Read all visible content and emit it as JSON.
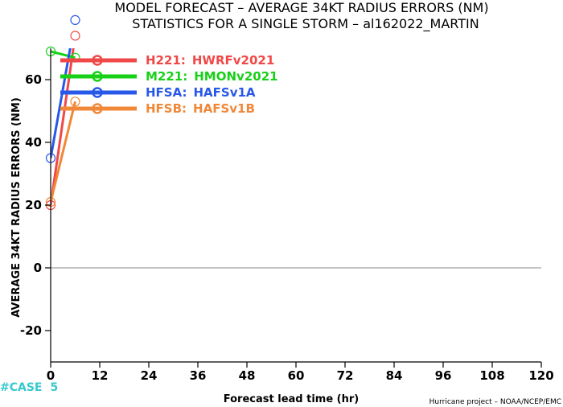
{
  "page": {
    "title_line1": "MODEL FORECAST – AVERAGE 34KT RADIUS ERRORS (NM)",
    "title_line2": "STATISTICS FOR A SINGLE STORM – al162022_MARTIN",
    "case_label": "#CASE",
    "case_count": "5",
    "footer": "Hurricane project – NOAA/NCEP/EMC"
  },
  "colors": {
    "H221": "#f04848",
    "M221": "#18d018",
    "HFSA": "#2858e8",
    "HFSB": "#f08838",
    "case": "#38c8d0",
    "zero_line": "#888888"
  },
  "chart_data": {
    "type": "line",
    "title": "MODEL FORECAST – AVERAGE 34KT RADIUS ERRORS (NM)",
    "subtitle": "STATISTICS FOR A SINGLE STORM – al162022_MARTIN",
    "xlabel": "Forecast lead time (hr)",
    "ylabel": "AVERAGE 34KT RADIUS ERRORS (NM)",
    "xlim": [
      0,
      120
    ],
    "ylim": [
      -30,
      70
    ],
    "xticks": [
      "0",
      "12",
      "24",
      "36",
      "48",
      "60",
      "72",
      "84",
      "96",
      "108",
      "120"
    ],
    "yticks": [
      "-20",
      "0",
      "20",
      "40",
      "60"
    ],
    "grid": false,
    "legend_position": "top-left",
    "series": [
      {
        "key": "H221",
        "name": "H221:",
        "label": "HWRFv2021",
        "color": "#f04848",
        "x": [
          0,
          6
        ],
        "y": [
          20,
          74
        ]
      },
      {
        "key": "M221",
        "name": "M221:",
        "label": "HMONv2021",
        "color": "#18d018",
        "x": [
          0,
          6
        ],
        "y": [
          69,
          67
        ]
      },
      {
        "key": "HFSA",
        "name": "HFSA:",
        "label": "HAFSv1A",
        "color": "#2858e8",
        "x": [
          0,
          6
        ],
        "y": [
          35,
          79
        ]
      },
      {
        "key": "HFSB",
        "name": "HFSB:",
        "label": "HAFSv1B",
        "color": "#f08838",
        "x": [
          0,
          6
        ],
        "y": [
          21,
          53
        ]
      }
    ]
  }
}
